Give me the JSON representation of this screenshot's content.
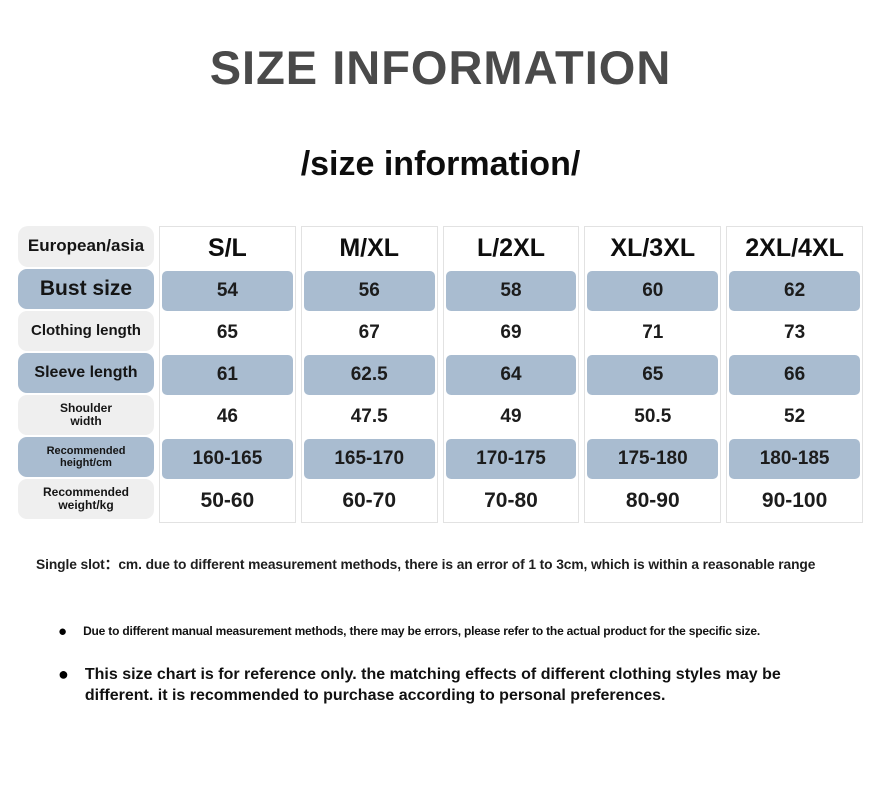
{
  "title": "SIZE INFORMATION",
  "subtitle": "/size information/",
  "table": {
    "corner_label": "European/asia",
    "sizes": [
      "S/L",
      "M/XL",
      "L/2XL",
      "XL/3XL",
      "2XL/4XL"
    ],
    "rows": [
      {
        "label": "Bust size",
        "values": [
          "54",
          "56",
          "58",
          "60",
          "62"
        ]
      },
      {
        "label": "Clothing length",
        "values": [
          "65",
          "67",
          "69",
          "71",
          "73"
        ]
      },
      {
        "label": "Sleeve length",
        "values": [
          "61",
          "62.5",
          "64",
          "65",
          "66"
        ]
      },
      {
        "label": "Shoulder\nwidth",
        "values": [
          "46",
          "47.5",
          "49",
          "50.5",
          "52"
        ]
      },
      {
        "label": "Recommended\nheight/cm",
        "values": [
          "160-165",
          "165-170",
          "170-175",
          "175-180",
          "180-185"
        ]
      },
      {
        "label": "Recommended weight/kg",
        "values": [
          "50-60",
          "60-70",
          "70-80",
          "80-90",
          "90-100"
        ]
      }
    ]
  },
  "notes": {
    "measurement_note": "Single slot：cm. due to different measurement methods, there is an error of 1 to 3cm, which is within a reasonable range",
    "bullet_icon": "●",
    "bullets": [
      "Due to different manual measurement methods, there may be errors, please refer to the actual product for the specific size.",
      "This size chart is for reference only. the matching effects of different clothing styles may be different. it is recommended to purchase according to personal preferences."
    ]
  },
  "colors": {
    "highlight_blue": "#a9bcd0",
    "label_gray": "#efefef",
    "title_gray": "#4a4a4a"
  }
}
